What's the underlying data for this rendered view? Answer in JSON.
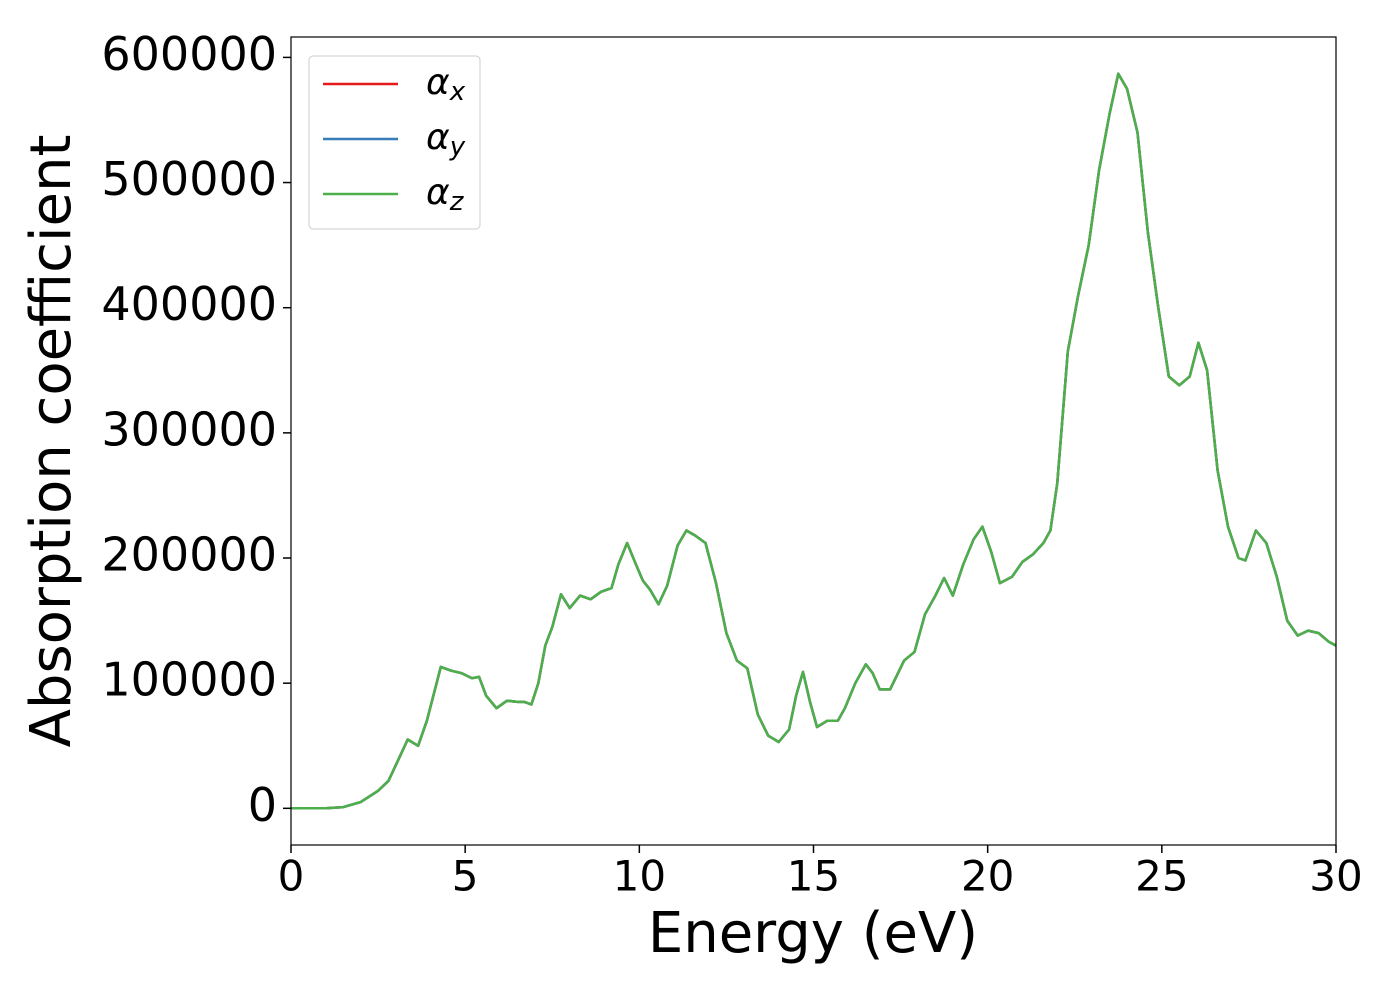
{
  "chart_data": {
    "type": "line",
    "xlabel": "Energy (eV)",
    "ylabel": "Absorption coefficient",
    "x": [
      0,
      1,
      1.5,
      2,
      2.5,
      2.8,
      3.1,
      3.35,
      3.65,
      3.9,
      4.3,
      4.6,
      4.9,
      5.2,
      5.4,
      5.6,
      5.9,
      6.2,
      6.5,
      6.7,
      6.9,
      7.1,
      7.3,
      7.5,
      7.75,
      8.0,
      8.3,
      8.6,
      8.9,
      9.2,
      9.4,
      9.65,
      9.9,
      10.1,
      10.3,
      10.55,
      10.8,
      11.1,
      11.35,
      11.6,
      11.9,
      12.2,
      12.5,
      12.8,
      13.1,
      13.4,
      13.7,
      14.0,
      14.3,
      14.5,
      14.7,
      14.9,
      15.1,
      15.4,
      15.7,
      15.9,
      16.2,
      16.5,
      16.7,
      16.9,
      17.2,
      17.6,
      17.9,
      18.2,
      18.5,
      18.75,
      19.0,
      19.3,
      19.6,
      19.85,
      20.1,
      20.35,
      20.7,
      21.0,
      21.3,
      21.6,
      21.8,
      22.0,
      22.3,
      22.6,
      22.9,
      23.2,
      23.5,
      23.75,
      24.0,
      24.3,
      24.6,
      24.9,
      25.2,
      25.5,
      25.8,
      26.05,
      26.3,
      26.6,
      26.9,
      27.2,
      27.4,
      27.7,
      28.0,
      28.3,
      28.6,
      28.9,
      29.2,
      29.5,
      29.8,
      30
    ],
    "series": [
      {
        "name": "αx",
        "color": "#e41a1c",
        "values": [
          0,
          0,
          1000,
          5000,
          14000,
          22000,
          40000,
          55000,
          50000,
          70000,
          113000,
          110000,
          108000,
          104000,
          105000,
          90000,
          80000,
          86000,
          85000,
          85000,
          83000,
          100000,
          130000,
          145000,
          171000,
          160000,
          170000,
          167000,
          173000,
          176000,
          195000,
          212000,
          195000,
          182000,
          175000,
          163000,
          178000,
          210000,
          222000,
          218000,
          212000,
          180000,
          140000,
          118000,
          112000,
          75000,
          58000,
          53000,
          63000,
          90000,
          109000,
          85000,
          65000,
          70000,
          70000,
          80000,
          100000,
          115000,
          108000,
          95000,
          95000,
          118000,
          125000,
          155000,
          170000,
          184000,
          170000,
          195000,
          215000,
          225000,
          205000,
          180000,
          185000,
          197000,
          203000,
          212000,
          222000,
          260000,
          365000,
          410000,
          450000,
          510000,
          555000,
          587000,
          575000,
          540000,
          460000,
          400000,
          345000,
          338000,
          345000,
          372000,
          350000,
          270000,
          225000,
          200000,
          198000,
          222000,
          212000,
          185000,
          150000,
          138000,
          142000,
          140000,
          133000,
          130000
        ]
      },
      {
        "name": "αy",
        "color": "#377eb8",
        "values": [
          0,
          0,
          1000,
          5000,
          14000,
          22000,
          40000,
          55000,
          50000,
          70000,
          113000,
          110000,
          108000,
          104000,
          105000,
          90000,
          80000,
          86000,
          85000,
          85000,
          83000,
          100000,
          130000,
          145000,
          171000,
          160000,
          170000,
          167000,
          173000,
          176000,
          195000,
          212000,
          195000,
          182000,
          175000,
          163000,
          178000,
          210000,
          222000,
          218000,
          212000,
          180000,
          140000,
          118000,
          112000,
          75000,
          58000,
          53000,
          63000,
          90000,
          109000,
          85000,
          65000,
          70000,
          70000,
          80000,
          100000,
          115000,
          108000,
          95000,
          95000,
          118000,
          125000,
          155000,
          170000,
          184000,
          170000,
          195000,
          215000,
          225000,
          205000,
          180000,
          185000,
          197000,
          203000,
          212000,
          222000,
          260000,
          365000,
          410000,
          450000,
          510000,
          555000,
          587000,
          575000,
          540000,
          460000,
          400000,
          345000,
          338000,
          345000,
          372000,
          350000,
          270000,
          225000,
          200000,
          198000,
          222000,
          212000,
          185000,
          150000,
          138000,
          142000,
          140000,
          133000,
          130000
        ]
      },
      {
        "name": "αz",
        "color": "#4daf4a",
        "values": [
          0,
          0,
          1000,
          5000,
          14000,
          22000,
          40000,
          55000,
          50000,
          70000,
          113000,
          110000,
          108000,
          104000,
          105000,
          90000,
          80000,
          86000,
          85000,
          85000,
          83000,
          100000,
          130000,
          145000,
          171000,
          160000,
          170000,
          167000,
          173000,
          176000,
          195000,
          212000,
          195000,
          182000,
          175000,
          163000,
          178000,
          210000,
          222000,
          218000,
          212000,
          180000,
          140000,
          118000,
          112000,
          75000,
          58000,
          53000,
          63000,
          90000,
          109000,
          85000,
          65000,
          70000,
          70000,
          80000,
          100000,
          115000,
          108000,
          95000,
          95000,
          118000,
          125000,
          155000,
          170000,
          184000,
          170000,
          195000,
          215000,
          225000,
          205000,
          180000,
          185000,
          197000,
          203000,
          212000,
          222000,
          260000,
          365000,
          410000,
          450000,
          510000,
          555000,
          587000,
          575000,
          540000,
          460000,
          400000,
          345000,
          338000,
          345000,
          372000,
          350000,
          270000,
          225000,
          200000,
          198000,
          222000,
          212000,
          185000,
          150000,
          138000,
          142000,
          140000,
          133000,
          130000
        ]
      }
    ],
    "xlim": [
      0,
      30
    ],
    "xticks": [
      0,
      5,
      10,
      15,
      20,
      25,
      30
    ],
    "ylim": [
      -29300,
      616300
    ],
    "yticks": [
      0,
      100000,
      200000,
      300000,
      400000,
      500000,
      600000
    ],
    "legend": "upper left"
  }
}
